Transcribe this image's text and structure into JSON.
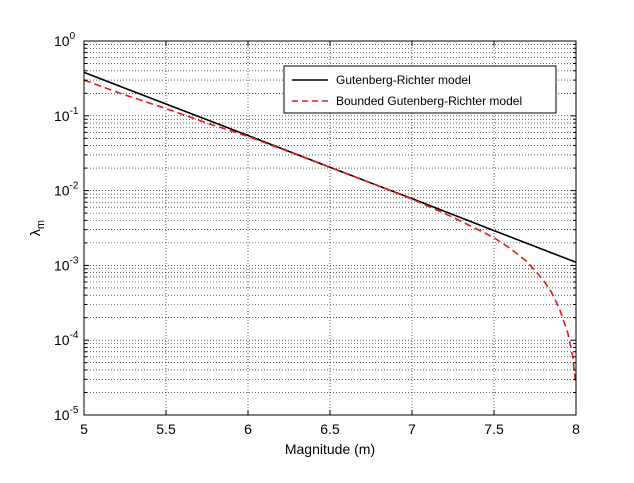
{
  "chart_data": {
    "type": "line",
    "xlabel": "Magnitude (m)",
    "ylabel_base": "λ",
    "ylabel_sub": "m",
    "xlim": [
      5,
      8
    ],
    "ylim": [
      1e-05,
      1
    ],
    "yscale": "log",
    "grid": true,
    "x_ticks": [
      "5",
      "5.5",
      "6",
      "6.5",
      "7",
      "7.5",
      "8"
    ],
    "y_ticks": [
      {
        "base": "10",
        "exp": "-5"
      },
      {
        "base": "10",
        "exp": "-4"
      },
      {
        "base": "10",
        "exp": "-3"
      },
      {
        "base": "10",
        "exp": "-2"
      },
      {
        "base": "10",
        "exp": "-1"
      },
      {
        "base": "10",
        "exp": "0"
      }
    ],
    "legend_position": "top-right",
    "series": [
      {
        "name": "Gutenberg-Richter model",
        "color": "#000000",
        "dash": "solid",
        "x": [
          5,
          5.5,
          6,
          6.5,
          7,
          7.5,
          8
        ],
        "y": [
          0.38,
          0.144,
          0.0545,
          0.0205,
          0.0078,
          0.00292,
          0.0011
        ]
      },
      {
        "name": "Bounded Gutenberg-Richter model",
        "color": "#e8191d",
        "dash": "dashed",
        "x": [
          5,
          5.25,
          5.5,
          5.75,
          6,
          6.25,
          6.5,
          6.75,
          7,
          7.25,
          7.5,
          7.6,
          7.7,
          7.8,
          7.85,
          7.9,
          7.95,
          7.98,
          8
        ],
        "y": [
          0.3,
          0.19,
          0.125,
          0.08,
          0.053,
          0.033,
          0.0205,
          0.0126,
          0.0077,
          0.0044,
          0.00235,
          0.00168,
          0.00113,
          0.00064,
          0.00044,
          0.00026,
          0.000125,
          6e-05,
          2.5e-05
        ]
      }
    ]
  }
}
